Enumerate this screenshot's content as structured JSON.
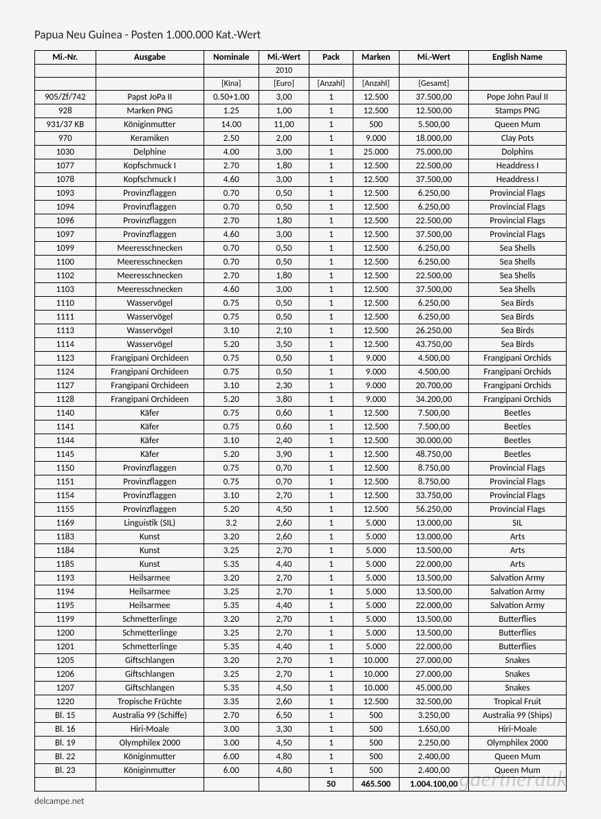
{
  "title": "Papua Neu Guinea - Posten 1.000.000 Kat.-Wert",
  "headers": {
    "c1": "Mi.-Nr.",
    "c2": "Ausgabe",
    "c3": "Nominale",
    "c4": "Mi.-Wert",
    "c5": "Pack",
    "c6": "Marken",
    "c7": "Mi.-Wert",
    "c8": "English Name"
  },
  "subheaders": {
    "c3": "[Kina]",
    "c4a": "2010",
    "c4b": "[Euro]",
    "c5": "[Anzahl]",
    "c6": "[Anzahl]",
    "c7": "[Gesamt]"
  },
  "rows": [
    {
      "nr": "905/Zf/742",
      "ausgabe": "Papst JoPa II",
      "nom": "0.50+1.00",
      "miw": "3,00",
      "pack": "1",
      "marken": "12.500",
      "gesamt": "37.500,00",
      "eng": "Pope John Paul II"
    },
    {
      "nr": "928",
      "ausgabe": "Marken PNG",
      "nom": "1.25",
      "miw": "1,00",
      "pack": "1",
      "marken": "12.500",
      "gesamt": "12.500,00",
      "eng": "Stamps PNG"
    },
    {
      "nr": "931/37 KB",
      "ausgabe": "Königinmutter",
      "nom": "14.00",
      "miw": "11,00",
      "pack": "1",
      "marken": "500",
      "gesamt": "5.500,00",
      "eng": "Queen Mum"
    },
    {
      "nr": "970",
      "ausgabe": "Keramiken",
      "nom": "2.50",
      "miw": "2,00",
      "pack": "1",
      "marken": "9.000",
      "gesamt": "18.000,00",
      "eng": "Clay Pots"
    },
    {
      "nr": "1030",
      "ausgabe": "Delphine",
      "nom": "4.00",
      "miw": "3,00",
      "pack": "1",
      "marken": "25.000",
      "gesamt": "75.000,00",
      "eng": "Dolphins"
    },
    {
      "nr": "1077",
      "ausgabe": "Kopfschmuck I",
      "nom": "2.70",
      "miw": "1,80",
      "pack": "1",
      "marken": "12.500",
      "gesamt": "22.500,00",
      "eng": "Headdress I"
    },
    {
      "nr": "1078",
      "ausgabe": "Kopfschmuck I",
      "nom": "4.60",
      "miw": "3,00",
      "pack": "1",
      "marken": "12.500",
      "gesamt": "37.500,00",
      "eng": "Headdress I"
    },
    {
      "nr": "1093",
      "ausgabe": "Provinzflaggen",
      "nom": "0.70",
      "miw": "0,50",
      "pack": "1",
      "marken": "12.500",
      "gesamt": "6.250,00",
      "eng": "Provincial Flags"
    },
    {
      "nr": "1094",
      "ausgabe": "Provinzflaggen",
      "nom": "0.70",
      "miw": "0,50",
      "pack": "1",
      "marken": "12.500",
      "gesamt": "6.250,00",
      "eng": "Provincial Flags"
    },
    {
      "nr": "1096",
      "ausgabe": "Provinzflaggen",
      "nom": "2.70",
      "miw": "1,80",
      "pack": "1",
      "marken": "12.500",
      "gesamt": "22.500,00",
      "eng": "Provincial Flags"
    },
    {
      "nr": "1097",
      "ausgabe": "Provinzflaggen",
      "nom": "4.60",
      "miw": "3,00",
      "pack": "1",
      "marken": "12.500",
      "gesamt": "37.500,00",
      "eng": "Provincial Flags"
    },
    {
      "nr": "1099",
      "ausgabe": "Meeresschnecken",
      "nom": "0.70",
      "miw": "0,50",
      "pack": "1",
      "marken": "12.500",
      "gesamt": "6.250,00",
      "eng": "Sea Shells"
    },
    {
      "nr": "1100",
      "ausgabe": "Meeresschnecken",
      "nom": "0.70",
      "miw": "0,50",
      "pack": "1",
      "marken": "12.500",
      "gesamt": "6.250,00",
      "eng": "Sea Shells"
    },
    {
      "nr": "1102",
      "ausgabe": "Meeresschnecken",
      "nom": "2.70",
      "miw": "1,80",
      "pack": "1",
      "marken": "12.500",
      "gesamt": "22.500,00",
      "eng": "Sea Shells"
    },
    {
      "nr": "1103",
      "ausgabe": "Meeresschnecken",
      "nom": "4.60",
      "miw": "3,00",
      "pack": "1",
      "marken": "12.500",
      "gesamt": "37.500,00",
      "eng": "Sea Shells"
    },
    {
      "nr": "1110",
      "ausgabe": "Wasservögel",
      "nom": "0.75",
      "miw": "0,50",
      "pack": "1",
      "marken": "12.500",
      "gesamt": "6.250,00",
      "eng": "Sea Birds"
    },
    {
      "nr": "1111",
      "ausgabe": "Wasservögel",
      "nom": "0.75",
      "miw": "0,50",
      "pack": "1",
      "marken": "12.500",
      "gesamt": "6.250,00",
      "eng": "Sea Birds"
    },
    {
      "nr": "1113",
      "ausgabe": "Wasservögel",
      "nom": "3.10",
      "miw": "2,10",
      "pack": "1",
      "marken": "12.500",
      "gesamt": "26.250,00",
      "eng": "Sea Birds"
    },
    {
      "nr": "1114",
      "ausgabe": "Wasservögel",
      "nom": "5.20",
      "miw": "3,50",
      "pack": "1",
      "marken": "12.500",
      "gesamt": "43.750,00",
      "eng": "Sea Birds"
    },
    {
      "nr": "1123",
      "ausgabe": "Frangipani Orchideen",
      "nom": "0.75",
      "miw": "0,50",
      "pack": "1",
      "marken": "9.000",
      "gesamt": "4.500,00",
      "eng": "Frangipani Orchids"
    },
    {
      "nr": "1124",
      "ausgabe": "Frangipani Orchideen",
      "nom": "0.75",
      "miw": "0,50",
      "pack": "1",
      "marken": "9.000",
      "gesamt": "4.500,00",
      "eng": "Frangipani Orchids"
    },
    {
      "nr": "1127",
      "ausgabe": "Frangipani Orchideen",
      "nom": "3.10",
      "miw": "2,30",
      "pack": "1",
      "marken": "9.000",
      "gesamt": "20.700,00",
      "eng": "Frangipani Orchids"
    },
    {
      "nr": "1128",
      "ausgabe": "Frangipani Orchideen",
      "nom": "5.20",
      "miw": "3,80",
      "pack": "1",
      "marken": "9.000",
      "gesamt": "34.200,00",
      "eng": "Frangipani Orchids"
    },
    {
      "nr": "1140",
      "ausgabe": "Käfer",
      "nom": "0.75",
      "miw": "0,60",
      "pack": "1",
      "marken": "12.500",
      "gesamt": "7.500,00",
      "eng": "Beetles"
    },
    {
      "nr": "1141",
      "ausgabe": "Käfer",
      "nom": "0.75",
      "miw": "0,60",
      "pack": "1",
      "marken": "12.500",
      "gesamt": "7.500,00",
      "eng": "Beetles"
    },
    {
      "nr": "1144",
      "ausgabe": "Käfer",
      "nom": "3.10",
      "miw": "2,40",
      "pack": "1",
      "marken": "12.500",
      "gesamt": "30.000,00",
      "eng": "Beetles"
    },
    {
      "nr": "1145",
      "ausgabe": "Käfer",
      "nom": "5.20",
      "miw": "3,90",
      "pack": "1",
      "marken": "12.500",
      "gesamt": "48.750,00",
      "eng": "Beetles"
    },
    {
      "nr": "1150",
      "ausgabe": "Provinzflaggen",
      "nom": "0.75",
      "miw": "0,70",
      "pack": "1",
      "marken": "12.500",
      "gesamt": "8.750,00",
      "eng": "Provincial Flags"
    },
    {
      "nr": "1151",
      "ausgabe": "Provinzflaggen",
      "nom": "0.75",
      "miw": "0,70",
      "pack": "1",
      "marken": "12.500",
      "gesamt": "8.750,00",
      "eng": "Provincial Flags"
    },
    {
      "nr": "1154",
      "ausgabe": "Provinzflaggen",
      "nom": "3.10",
      "miw": "2,70",
      "pack": "1",
      "marken": "12.500",
      "gesamt": "33.750,00",
      "eng": "Provincial Flags"
    },
    {
      "nr": "1155",
      "ausgabe": "Provinzflaggen",
      "nom": "5.20",
      "miw": "4,50",
      "pack": "1",
      "marken": "12.500",
      "gesamt": "56.250,00",
      "eng": "Provincial Flags"
    },
    {
      "nr": "1169",
      "ausgabe": "Linguistik (SIL)",
      "nom": "3.2",
      "miw": "2,60",
      "pack": "1",
      "marken": "5.000",
      "gesamt": "13.000,00",
      "eng": "SIL"
    },
    {
      "nr": "1183",
      "ausgabe": "Kunst",
      "nom": "3.20",
      "miw": "2,60",
      "pack": "1",
      "marken": "5.000",
      "gesamt": "13.000,00",
      "eng": "Arts"
    },
    {
      "nr": "1184",
      "ausgabe": "Kunst",
      "nom": "3.25",
      "miw": "2,70",
      "pack": "1",
      "marken": "5.000",
      "gesamt": "13.500,00",
      "eng": "Arts"
    },
    {
      "nr": "1185",
      "ausgabe": "Kunst",
      "nom": "5.35",
      "miw": "4,40",
      "pack": "1",
      "marken": "5.000",
      "gesamt": "22.000,00",
      "eng": "Arts"
    },
    {
      "nr": "1193",
      "ausgabe": "Heilsarmee",
      "nom": "3.20",
      "miw": "2,70",
      "pack": "1",
      "marken": "5.000",
      "gesamt": "13.500,00",
      "eng": "Salvation Army"
    },
    {
      "nr": "1194",
      "ausgabe": "Heilsarmee",
      "nom": "3.25",
      "miw": "2,70",
      "pack": "1",
      "marken": "5.000",
      "gesamt": "13.500,00",
      "eng": "Salvation Army"
    },
    {
      "nr": "1195",
      "ausgabe": "Heilsarmee",
      "nom": "5.35",
      "miw": "4,40",
      "pack": "1",
      "marken": "5.000",
      "gesamt": "22.000,00",
      "eng": "Salvation Army"
    },
    {
      "nr": "1199",
      "ausgabe": "Schmetterlinge",
      "nom": "3.20",
      "miw": "2,70",
      "pack": "1",
      "marken": "5.000",
      "gesamt": "13.500,00",
      "eng": "Butterflies"
    },
    {
      "nr": "1200",
      "ausgabe": "Schmetterlinge",
      "nom": "3.25",
      "miw": "2,70",
      "pack": "1",
      "marken": "5.000",
      "gesamt": "13.500,00",
      "eng": "Butterflies"
    },
    {
      "nr": "1201",
      "ausgabe": "Schmetterlinge",
      "nom": "5.35",
      "miw": "4,40",
      "pack": "1",
      "marken": "5.000",
      "gesamt": "22.000,00",
      "eng": "Butterflies"
    },
    {
      "nr": "1205",
      "ausgabe": "Giftschlangen",
      "nom": "3.20",
      "miw": "2,70",
      "pack": "1",
      "marken": "10.000",
      "gesamt": "27.000,00",
      "eng": "Snakes"
    },
    {
      "nr": "1206",
      "ausgabe": "Giftschlangen",
      "nom": "3.25",
      "miw": "2,70",
      "pack": "1",
      "marken": "10.000",
      "gesamt": "27.000,00",
      "eng": "Snakes"
    },
    {
      "nr": "1207",
      "ausgabe": "Giftschlangen",
      "nom": "5.35",
      "miw": "4,50",
      "pack": "1",
      "marken": "10.000",
      "gesamt": "45.000,00",
      "eng": "Snakes"
    },
    {
      "nr": "1220",
      "ausgabe": "Tropische Früchte",
      "nom": "3.35",
      "miw": "2,60",
      "pack": "1",
      "marken": "12.500",
      "gesamt": "32.500,00",
      "eng": "Tropical Fruit"
    },
    {
      "nr": "Bl. 15",
      "ausgabe": "Australia 99 (Schiffe)",
      "nom": "2.70",
      "miw": "6,50",
      "pack": "1",
      "marken": "500",
      "gesamt": "3.250,00",
      "eng": "Australia 99 (Ships)"
    },
    {
      "nr": "Bl. 16",
      "ausgabe": "Hiri-Moale",
      "nom": "3.00",
      "miw": "3,30",
      "pack": "1",
      "marken": "500",
      "gesamt": "1.650,00",
      "eng": "Hiri-Moale"
    },
    {
      "nr": "Bl. 19",
      "ausgabe": "Olymphilex 2000",
      "nom": "3.00",
      "miw": "4,50",
      "pack": "1",
      "marken": "500",
      "gesamt": "2.250,00",
      "eng": "Olymphilex 2000"
    },
    {
      "nr": "Bl. 22",
      "ausgabe": "Königinmutter",
      "nom": "6.00",
      "miw": "4,80",
      "pack": "1",
      "marken": "500",
      "gesamt": "2.400,00",
      "eng": "Queen Mum"
    },
    {
      "nr": "Bl. 23",
      "ausgabe": "Königinmutter",
      "nom": "6.00",
      "miw": "4,80",
      "pack": "1",
      "marken": "500",
      "gesamt": "2.400,00",
      "eng": "Queen Mum"
    }
  ],
  "totals": {
    "pack": "50",
    "marken": "465.500",
    "gesamt": "1.004.100,00"
  },
  "footer": "delcampe.net",
  "watermark": "gaertnerauk"
}
